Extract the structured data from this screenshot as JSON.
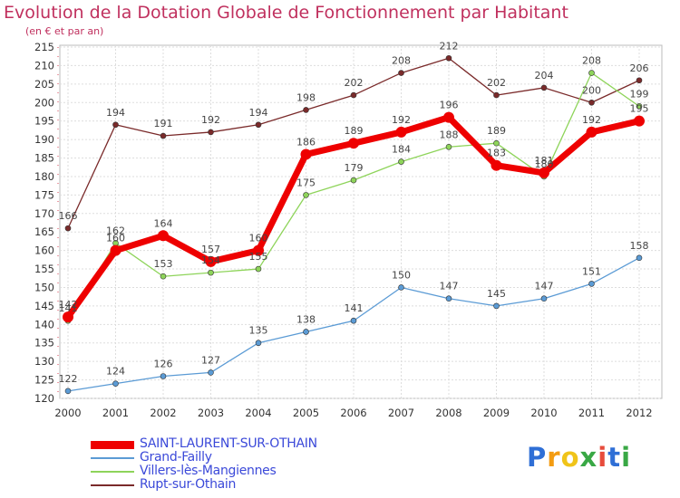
{
  "chart_data": {
    "type": "line",
    "title": "Evolution de la Dotation Globale de Fonctionnement par Habitant",
    "subtitle": "(en € et par an)",
    "xlabel": "",
    "ylabel": "",
    "x": [
      "2000",
      "2001",
      "2002",
      "2003",
      "2004",
      "2005",
      "2006",
      "2007",
      "2008",
      "2009",
      "2010",
      "2011",
      "2012"
    ],
    "ylim": [
      120,
      215
    ],
    "yticks": [
      120,
      125,
      130,
      135,
      140,
      145,
      150,
      155,
      160,
      165,
      170,
      175,
      180,
      185,
      190,
      195,
      200,
      205,
      210,
      215
    ],
    "grid": true,
    "legend_position": "bottom-left",
    "series": [
      {
        "name": "Rupt-sur-Othain",
        "color": "#7a2a2a",
        "values": [
          166,
          194,
          191,
          192,
          194,
          198,
          202,
          208,
          212,
          202,
          204,
          200,
          206
        ]
      },
      {
        "name": "Villers-lès-Mangiennes",
        "color": "#8ed45a",
        "values": [
          141,
          162,
          153,
          154,
          155,
          175,
          179,
          184,
          188,
          189,
          180,
          208,
          199
        ]
      },
      {
        "name": "Grand-Failly",
        "color": "#5b9bd5",
        "values": [
          122,
          124,
          126,
          127,
          135,
          138,
          141,
          150,
          147,
          145,
          147,
          151,
          158
        ]
      },
      {
        "name": "SAINT-LAURENT-SUR-OTHAIN",
        "color": "#ee0000",
        "values": [
          142,
          160,
          164,
          157,
          160,
          186,
          189,
          192,
          196,
          183,
          181,
          192,
          195
        ]
      }
    ]
  },
  "legend": [
    {
      "label": "SAINT-LAURENT-SUR-OTHAIN",
      "color": "#ee0000"
    },
    {
      "label": "Grand-Failly",
      "color": "#5b9bd5"
    },
    {
      "label": "Villers-lès-Mangiennes",
      "color": "#8ed45a"
    },
    {
      "label": "Rupt-sur-Othain",
      "color": "#7a2a2a"
    }
  ],
  "logo": {
    "text": "Proxiti",
    "letters": [
      "P",
      "r",
      "o",
      "x",
      "i",
      "t",
      "i"
    ],
    "colors": [
      "#2f6fd6",
      "#f39c12",
      "#f0c419",
      "#39a845",
      "#e74c3c",
      "#2f6fd6",
      "#39a845"
    ]
  }
}
